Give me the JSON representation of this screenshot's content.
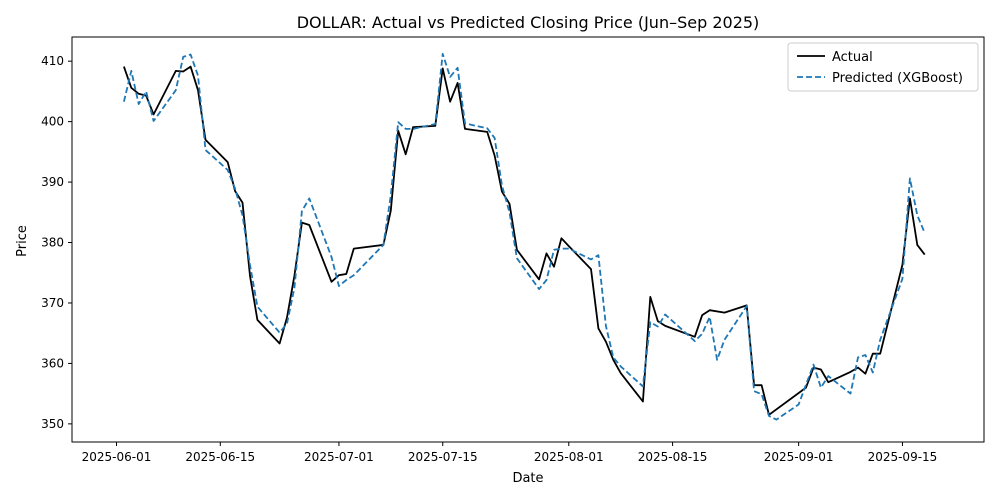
{
  "chart_data": {
    "type": "line",
    "title": "DOLLAR: Actual vs Predicted Closing Price (Jun–Sep 2025)",
    "xlabel": "Date",
    "ylabel": "Price",
    "xlim": [
      "2025-05-26",
      "2025-09-26"
    ],
    "ylim": [
      347,
      414
    ],
    "x_ticks": [
      "2025-06-01",
      "2025-06-15",
      "2025-07-01",
      "2025-07-15",
      "2025-08-01",
      "2025-08-15",
      "2025-09-01",
      "2025-09-15"
    ],
    "y_ticks": [
      350,
      360,
      370,
      380,
      390,
      400,
      410
    ],
    "grid": false,
    "legend_position": "top-right",
    "series": [
      {
        "name": "Actual",
        "color": "#000000",
        "style": "solid",
        "points": [
          [
            "2025-06-02",
            409.1
          ],
          [
            "2025-06-03",
            405.6
          ],
          [
            "2025-06-04",
            404.6
          ],
          [
            "2025-06-05",
            404.3
          ],
          [
            "2025-06-06",
            401.2
          ],
          [
            "2025-06-09",
            408.4
          ],
          [
            "2025-06-10",
            408.3
          ],
          [
            "2025-06-11",
            409.1
          ],
          [
            "2025-06-12",
            405.2
          ],
          [
            "2025-06-13",
            397.0
          ],
          [
            "2025-06-16",
            393.3
          ],
          [
            "2025-06-17",
            388.5
          ],
          [
            "2025-06-18",
            386.6
          ],
          [
            "2025-06-19",
            374.5
          ],
          [
            "2025-06-20",
            367.2
          ],
          [
            "2025-06-23",
            363.3
          ],
          [
            "2025-06-24",
            367.6
          ],
          [
            "2025-06-25",
            374.5
          ],
          [
            "2025-06-26",
            383.3
          ],
          [
            "2025-06-27",
            382.9
          ],
          [
            "2025-06-30",
            373.5
          ],
          [
            "2025-07-01",
            374.6
          ],
          [
            "2025-07-02",
            374.8
          ],
          [
            "2025-07-03",
            379.0
          ],
          [
            "2025-07-07",
            379.6
          ],
          [
            "2025-07-08",
            385.3
          ],
          [
            "2025-07-09",
            398.5
          ],
          [
            "2025-07-10",
            394.6
          ],
          [
            "2025-07-11",
            399.1
          ],
          [
            "2025-07-14",
            399.3
          ],
          [
            "2025-07-15",
            408.8
          ],
          [
            "2025-07-16",
            403.3
          ],
          [
            "2025-07-17",
            406.4
          ],
          [
            "2025-07-18",
            398.8
          ],
          [
            "2025-07-21",
            398.3
          ],
          [
            "2025-07-22",
            394.4
          ],
          [
            "2025-07-23",
            388.4
          ],
          [
            "2025-07-24",
            386.4
          ],
          [
            "2025-07-25",
            378.8
          ],
          [
            "2025-07-28",
            373.9
          ],
          [
            "2025-07-29",
            378.2
          ],
          [
            "2025-07-30",
            376.0
          ],
          [
            "2025-07-31",
            380.7
          ],
          [
            "2025-08-01",
            379.4
          ],
          [
            "2025-08-04",
            375.6
          ],
          [
            "2025-08-05",
            365.8
          ],
          [
            "2025-08-06",
            363.6
          ],
          [
            "2025-08-07",
            360.6
          ],
          [
            "2025-08-08",
            358.4
          ],
          [
            "2025-08-11",
            353.7
          ],
          [
            "2025-08-12",
            371.0
          ],
          [
            "2025-08-13",
            367.0
          ],
          [
            "2025-08-14",
            366.2
          ],
          [
            "2025-08-18",
            364.4
          ],
          [
            "2025-08-19",
            368.0
          ],
          [
            "2025-08-20",
            368.8
          ],
          [
            "2025-08-22",
            368.4
          ],
          [
            "2025-08-25",
            369.6
          ],
          [
            "2025-08-26",
            356.4
          ],
          [
            "2025-08-27",
            356.4
          ],
          [
            "2025-08-28",
            351.5
          ],
          [
            "2025-09-02",
            356.0
          ],
          [
            "2025-09-03",
            359.3
          ],
          [
            "2025-09-04",
            359.0
          ],
          [
            "2025-09-05",
            356.9
          ],
          [
            "2025-09-08",
            358.6
          ],
          [
            "2025-09-09",
            359.3
          ],
          [
            "2025-09-10",
            358.3
          ],
          [
            "2025-09-11",
            361.6
          ],
          [
            "2025-09-12",
            361.6
          ],
          [
            "2025-09-15",
            376.3
          ],
          [
            "2025-09-16",
            387.3
          ],
          [
            "2025-09-17",
            379.6
          ],
          [
            "2025-09-18",
            378.0
          ]
        ]
      },
      {
        "name": "Predicted (XGBoost)",
        "color": "#1f77b4",
        "style": "dashed",
        "points": [
          [
            "2025-06-02",
            403.3
          ],
          [
            "2025-06-03",
            408.4
          ],
          [
            "2025-06-04",
            402.9
          ],
          [
            "2025-06-05",
            405.0
          ],
          [
            "2025-06-06",
            400.1
          ],
          [
            "2025-06-09",
            405.2
          ],
          [
            "2025-06-10",
            410.7
          ],
          [
            "2025-06-11",
            411.1
          ],
          [
            "2025-06-12",
            407.6
          ],
          [
            "2025-06-13",
            395.3
          ],
          [
            "2025-06-16",
            392.0
          ],
          [
            "2025-06-17",
            388.9
          ],
          [
            "2025-06-18",
            384.5
          ],
          [
            "2025-06-19",
            376.3
          ],
          [
            "2025-06-20",
            369.4
          ],
          [
            "2025-06-23",
            365.1
          ],
          [
            "2025-06-24",
            366.6
          ],
          [
            "2025-06-25",
            372.5
          ],
          [
            "2025-06-26",
            385.2
          ],
          [
            "2025-06-27",
            387.3
          ],
          [
            "2025-06-30",
            377.6
          ],
          [
            "2025-07-01",
            372.8
          ],
          [
            "2025-07-02",
            373.8
          ],
          [
            "2025-07-03",
            374.6
          ],
          [
            "2025-07-07",
            379.6
          ],
          [
            "2025-07-08",
            387.8
          ],
          [
            "2025-07-09",
            399.9
          ],
          [
            "2025-07-10",
            398.8
          ],
          [
            "2025-07-11",
            398.8
          ],
          [
            "2025-07-14",
            399.6
          ],
          [
            "2025-07-15",
            411.2
          ],
          [
            "2025-07-16",
            407.4
          ],
          [
            "2025-07-17",
            408.9
          ],
          [
            "2025-07-18",
            399.7
          ],
          [
            "2025-07-21",
            398.9
          ],
          [
            "2025-07-22",
            397.3
          ],
          [
            "2025-07-23",
            389.4
          ],
          [
            "2025-07-24",
            385.0
          ],
          [
            "2025-07-25",
            377.4
          ],
          [
            "2025-07-28",
            372.3
          ],
          [
            "2025-07-29",
            373.8
          ],
          [
            "2025-07-30",
            378.8
          ],
          [
            "2025-07-31",
            379.0
          ],
          [
            "2025-08-01",
            379.0
          ],
          [
            "2025-08-04",
            377.2
          ],
          [
            "2025-08-05",
            377.9
          ],
          [
            "2025-08-06",
            366.2
          ],
          [
            "2025-08-07",
            361.0
          ],
          [
            "2025-08-08",
            359.5
          ],
          [
            "2025-08-11",
            356.2
          ],
          [
            "2025-08-12",
            366.8
          ],
          [
            "2025-08-13",
            366.1
          ],
          [
            "2025-08-14",
            368.1
          ],
          [
            "2025-08-18",
            363.7
          ],
          [
            "2025-08-19",
            364.9
          ],
          [
            "2025-08-20",
            367.7
          ],
          [
            "2025-08-21",
            360.6
          ],
          [
            "2025-08-22",
            363.9
          ],
          [
            "2025-08-25",
            369.5
          ],
          [
            "2025-08-26",
            355.4
          ],
          [
            "2025-08-27",
            354.9
          ],
          [
            "2025-08-28",
            351.3
          ],
          [
            "2025-08-29",
            350.7
          ],
          [
            "2025-09-01",
            353.2
          ],
          [
            "2025-09-03",
            359.8
          ],
          [
            "2025-09-04",
            356.0
          ],
          [
            "2025-09-05",
            357.9
          ],
          [
            "2025-09-08",
            355.0
          ],
          [
            "2025-09-09",
            361.0
          ],
          [
            "2025-09-10",
            361.4
          ],
          [
            "2025-09-11",
            358.5
          ],
          [
            "2025-09-12",
            363.9
          ],
          [
            "2025-09-15",
            374.0
          ],
          [
            "2025-09-16",
            390.6
          ],
          [
            "2025-09-17",
            384.5
          ],
          [
            "2025-09-18",
            381.6
          ]
        ]
      }
    ]
  }
}
